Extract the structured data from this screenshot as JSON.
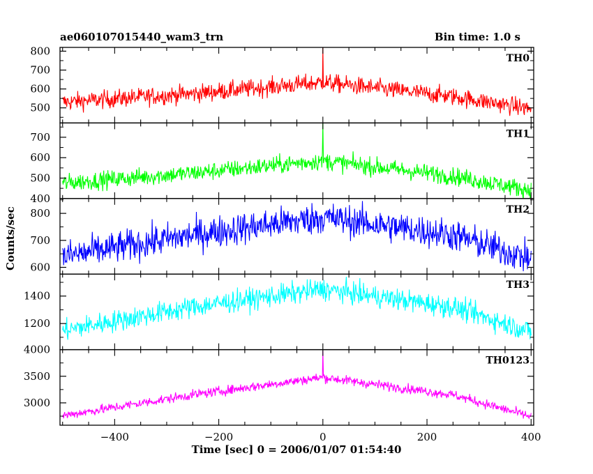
{
  "header": {
    "obs_id": "ae060107015440_wam3_trn",
    "bin_time": "Bin time: 1.0 s"
  },
  "xlabel": "Time [sec] 0 = 2006/01/07 01:54:40",
  "ylabel": "Counts/sec",
  "chart_data": {
    "type": "line",
    "x_range": [
      -505,
      405
    ],
    "x_ticks": [
      -400,
      -200,
      0,
      200,
      400
    ],
    "x_tick_labels": [
      "−400",
      "−200",
      "0",
      "200",
      "400"
    ],
    "bin_time_s": 1.0,
    "panels": [
      {
        "series_label": "TH0",
        "color": "#ff0000",
        "ylim": [
          420,
          820
        ],
        "yticks": [
          500,
          600,
          700,
          800
        ],
        "ytick_labels": [
          "500",
          "600",
          "700",
          "800"
        ],
        "peak_level": 635,
        "edge_level": 530,
        "edge_level_right": 495,
        "noise": 24,
        "spike": 820,
        "trend": [
          [
            -500,
            530
          ],
          [
            -250,
            575
          ],
          [
            0,
            635
          ],
          [
            250,
            560
          ],
          [
            400,
            495
          ]
        ]
      },
      {
        "series_label": "TH1",
        "color": "#00ff00",
        "ylim": [
          400,
          770
        ],
        "yticks": [
          400,
          500,
          600,
          700
        ],
        "ytick_labels": [
          "400",
          "500",
          "600",
          "700"
        ],
        "peak_level": 585,
        "edge_level": 475,
        "edge_level_right": 440,
        "noise": 22,
        "spike": 770,
        "trend": [
          [
            -500,
            475
          ],
          [
            -250,
            525
          ],
          [
            0,
            585
          ],
          [
            250,
            510
          ],
          [
            400,
            440
          ]
        ]
      },
      {
        "series_label": "TH2",
        "color": "#0000ff",
        "ylim": [
          575,
          855
        ],
        "yticks": [
          600,
          700,
          800
        ],
        "ytick_labels": [
          "600",
          "700",
          "800"
        ],
        "peak_level": 785,
        "edge_level": 640,
        "edge_level_right": 630,
        "noise": 30,
        "spike": null,
        "trend": [
          [
            -500,
            640
          ],
          [
            -250,
            720
          ],
          [
            0,
            785
          ],
          [
            250,
            720
          ],
          [
            400,
            630
          ]
        ]
      },
      {
        "series_label": "TH3",
        "color": "#00ffff",
        "ylim": [
          1010,
          1560
        ],
        "yticks": [
          1200,
          1400
        ],
        "ytick_labels": [
          "1200",
          "1400"
        ],
        "peak_level": 1450,
        "edge_level": 1150,
        "edge_level_right": 1140,
        "noise": 40,
        "spike": null,
        "trend": [
          [
            -500,
            1150
          ],
          [
            -250,
            1320
          ],
          [
            0,
            1450
          ],
          [
            250,
            1320
          ],
          [
            400,
            1140
          ]
        ]
      },
      {
        "series_label": "TH0123",
        "color": "#ff00ff",
        "ylim": [
          2580,
          4000
        ],
        "yticks": [
          3000,
          3500,
          4000
        ],
        "ytick_labels": [
          "3000",
          "3500",
          "4000"
        ],
        "peak_level": 3480,
        "edge_level": 2760,
        "edge_level_right": 2740,
        "noise": 45,
        "spike": 3980,
        "trend": [
          [
            -500,
            2760
          ],
          [
            -250,
            3150
          ],
          [
            0,
            3480
          ],
          [
            250,
            3150
          ],
          [
            400,
            2740
          ]
        ]
      }
    ]
  }
}
